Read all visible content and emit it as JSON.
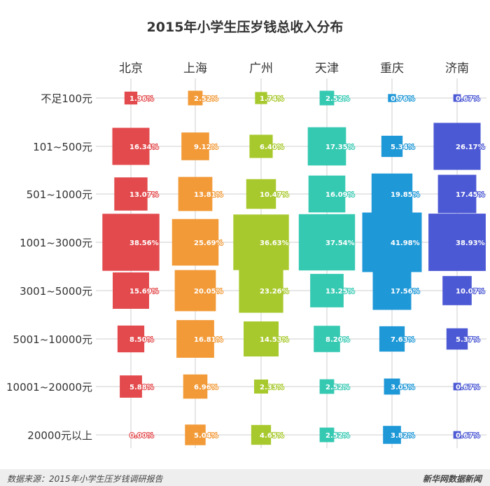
{
  "chart_data": {
    "type": "bubble-matrix",
    "title": "2015年小学生压岁钱总收入分布",
    "categories": [
      "北京",
      "上海",
      "广州",
      "天津",
      "重庆",
      "济南"
    ],
    "rows": [
      "不足100元",
      "101~500元",
      "501~1000元",
      "1001~3000元",
      "3001~5000元",
      "5001~10000元",
      "10001~20000元",
      "20000元以上"
    ],
    "series": [
      {
        "name": "北京",
        "color": "#e34a4d",
        "values": [
          1.96,
          16.34,
          13.07,
          38.56,
          15.69,
          8.5,
          5.88,
          0.0
        ],
        "labels": [
          "1.96%",
          "16.34%",
          "13.07%",
          "38.56%",
          "15.69%",
          "8.50%",
          "5.88%",
          "0.00%"
        ]
      },
      {
        "name": "上海",
        "color": "#f29a38",
        "values": [
          2.52,
          9.12,
          13.81,
          25.69,
          20.05,
          16.81,
          6.96,
          5.04
        ],
        "labels": [
          "2.52%",
          "9.12%",
          "13.81%",
          "25.69%",
          "20.05%",
          "16.81%",
          "6.96%",
          "5.04%"
        ]
      },
      {
        "name": "广州",
        "color": "#a8c92e",
        "values": [
          1.74,
          6.4,
          10.47,
          36.63,
          23.26,
          14.53,
          2.33,
          4.65
        ],
        "labels": [
          "1.74%",
          "6.40%",
          "10.47%",
          "36.63%",
          "23.26%",
          "14.53%",
          "2.33%",
          "4.65%"
        ]
      },
      {
        "name": "天津",
        "color": "#36c9b2",
        "values": [
          2.52,
          17.35,
          16.09,
          37.54,
          13.25,
          8.2,
          2.52,
          2.52
        ],
        "labels": [
          "2.52%",
          "17.35%",
          "16.09%",
          "37.54%",
          "13.25%",
          "8.20%",
          "2.52%",
          "2.52%"
        ]
      },
      {
        "name": "重庆",
        "color": "#1f98d7",
        "values": [
          0.76,
          5.34,
          19.85,
          41.98,
          17.56,
          7.63,
          3.05,
          3.82
        ],
        "labels": [
          "0.76%",
          "5.34%",
          "19.85%",
          "41.98%",
          "17.56%",
          "7.63%",
          "3.05%",
          "3.82%"
        ]
      },
      {
        "name": "济南",
        "color": "#4c59d4",
        "values": [
          0.67,
          26.17,
          17.45,
          38.93,
          10.07,
          5.37,
          0.67,
          0.67
        ],
        "labels": [
          "0.67%",
          "26.17%",
          "17.45%",
          "38.93%",
          "10.07%",
          "5.37%",
          "0.67%",
          "0.67%"
        ]
      }
    ],
    "size_encoding": "square area proportional to percentage"
  },
  "footer": {
    "source": "数据来源：2015年小学生压岁钱调研报告",
    "publisher": "新华网数据新闻"
  }
}
